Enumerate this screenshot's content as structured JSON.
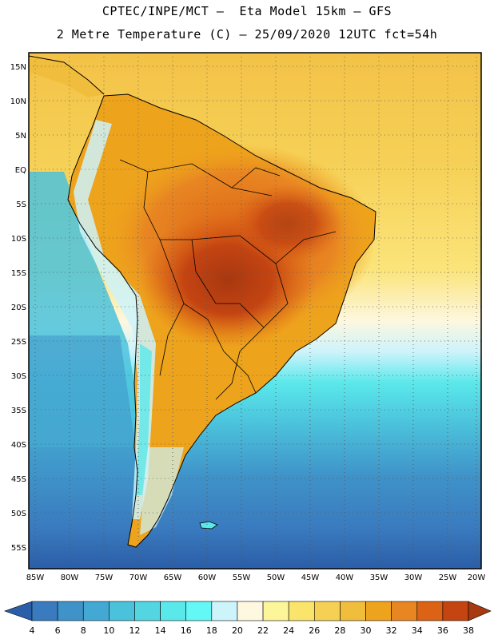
{
  "header": {
    "line1": "CPTEC/INPE/MCT –  Eta Model 15km – GFS",
    "line2": "2 Metre Temperature (C) – 25/09/2020 12UTC fct=54h"
  },
  "map": {
    "lat_labels": [
      "15N",
      "10N",
      "5N",
      "EQ",
      "5S",
      "10S",
      "15S",
      "20S",
      "25S",
      "30S",
      "35S",
      "40S",
      "45S",
      "50S",
      "55S"
    ],
    "lon_labels": [
      "85W",
      "80W",
      "75W",
      "70W",
      "65W",
      "60W",
      "55W",
      "50W",
      "45W",
      "40W",
      "35W",
      "30W",
      "25W",
      "20W"
    ]
  },
  "colorbar": {
    "labels": [
      "4",
      "6",
      "8",
      "10",
      "12",
      "14",
      "16",
      "18",
      "20",
      "22",
      "24",
      "26",
      "28",
      "30",
      "32",
      "34",
      "36",
      "38"
    ],
    "colors": [
      "#2b5ea8",
      "#3a7bbf",
      "#3f93c9",
      "#43a9d4",
      "#4bc2dc",
      "#54d6e2",
      "#5ae8eb",
      "#63f7f5",
      "#cdf3fb",
      "#fff8e0",
      "#fdf59a",
      "#fbe46b",
      "#f6d055",
      "#f1bd3d",
      "#eea31c",
      "#e88622",
      "#dc6216",
      "#c44412",
      "#a83810"
    ]
  }
}
